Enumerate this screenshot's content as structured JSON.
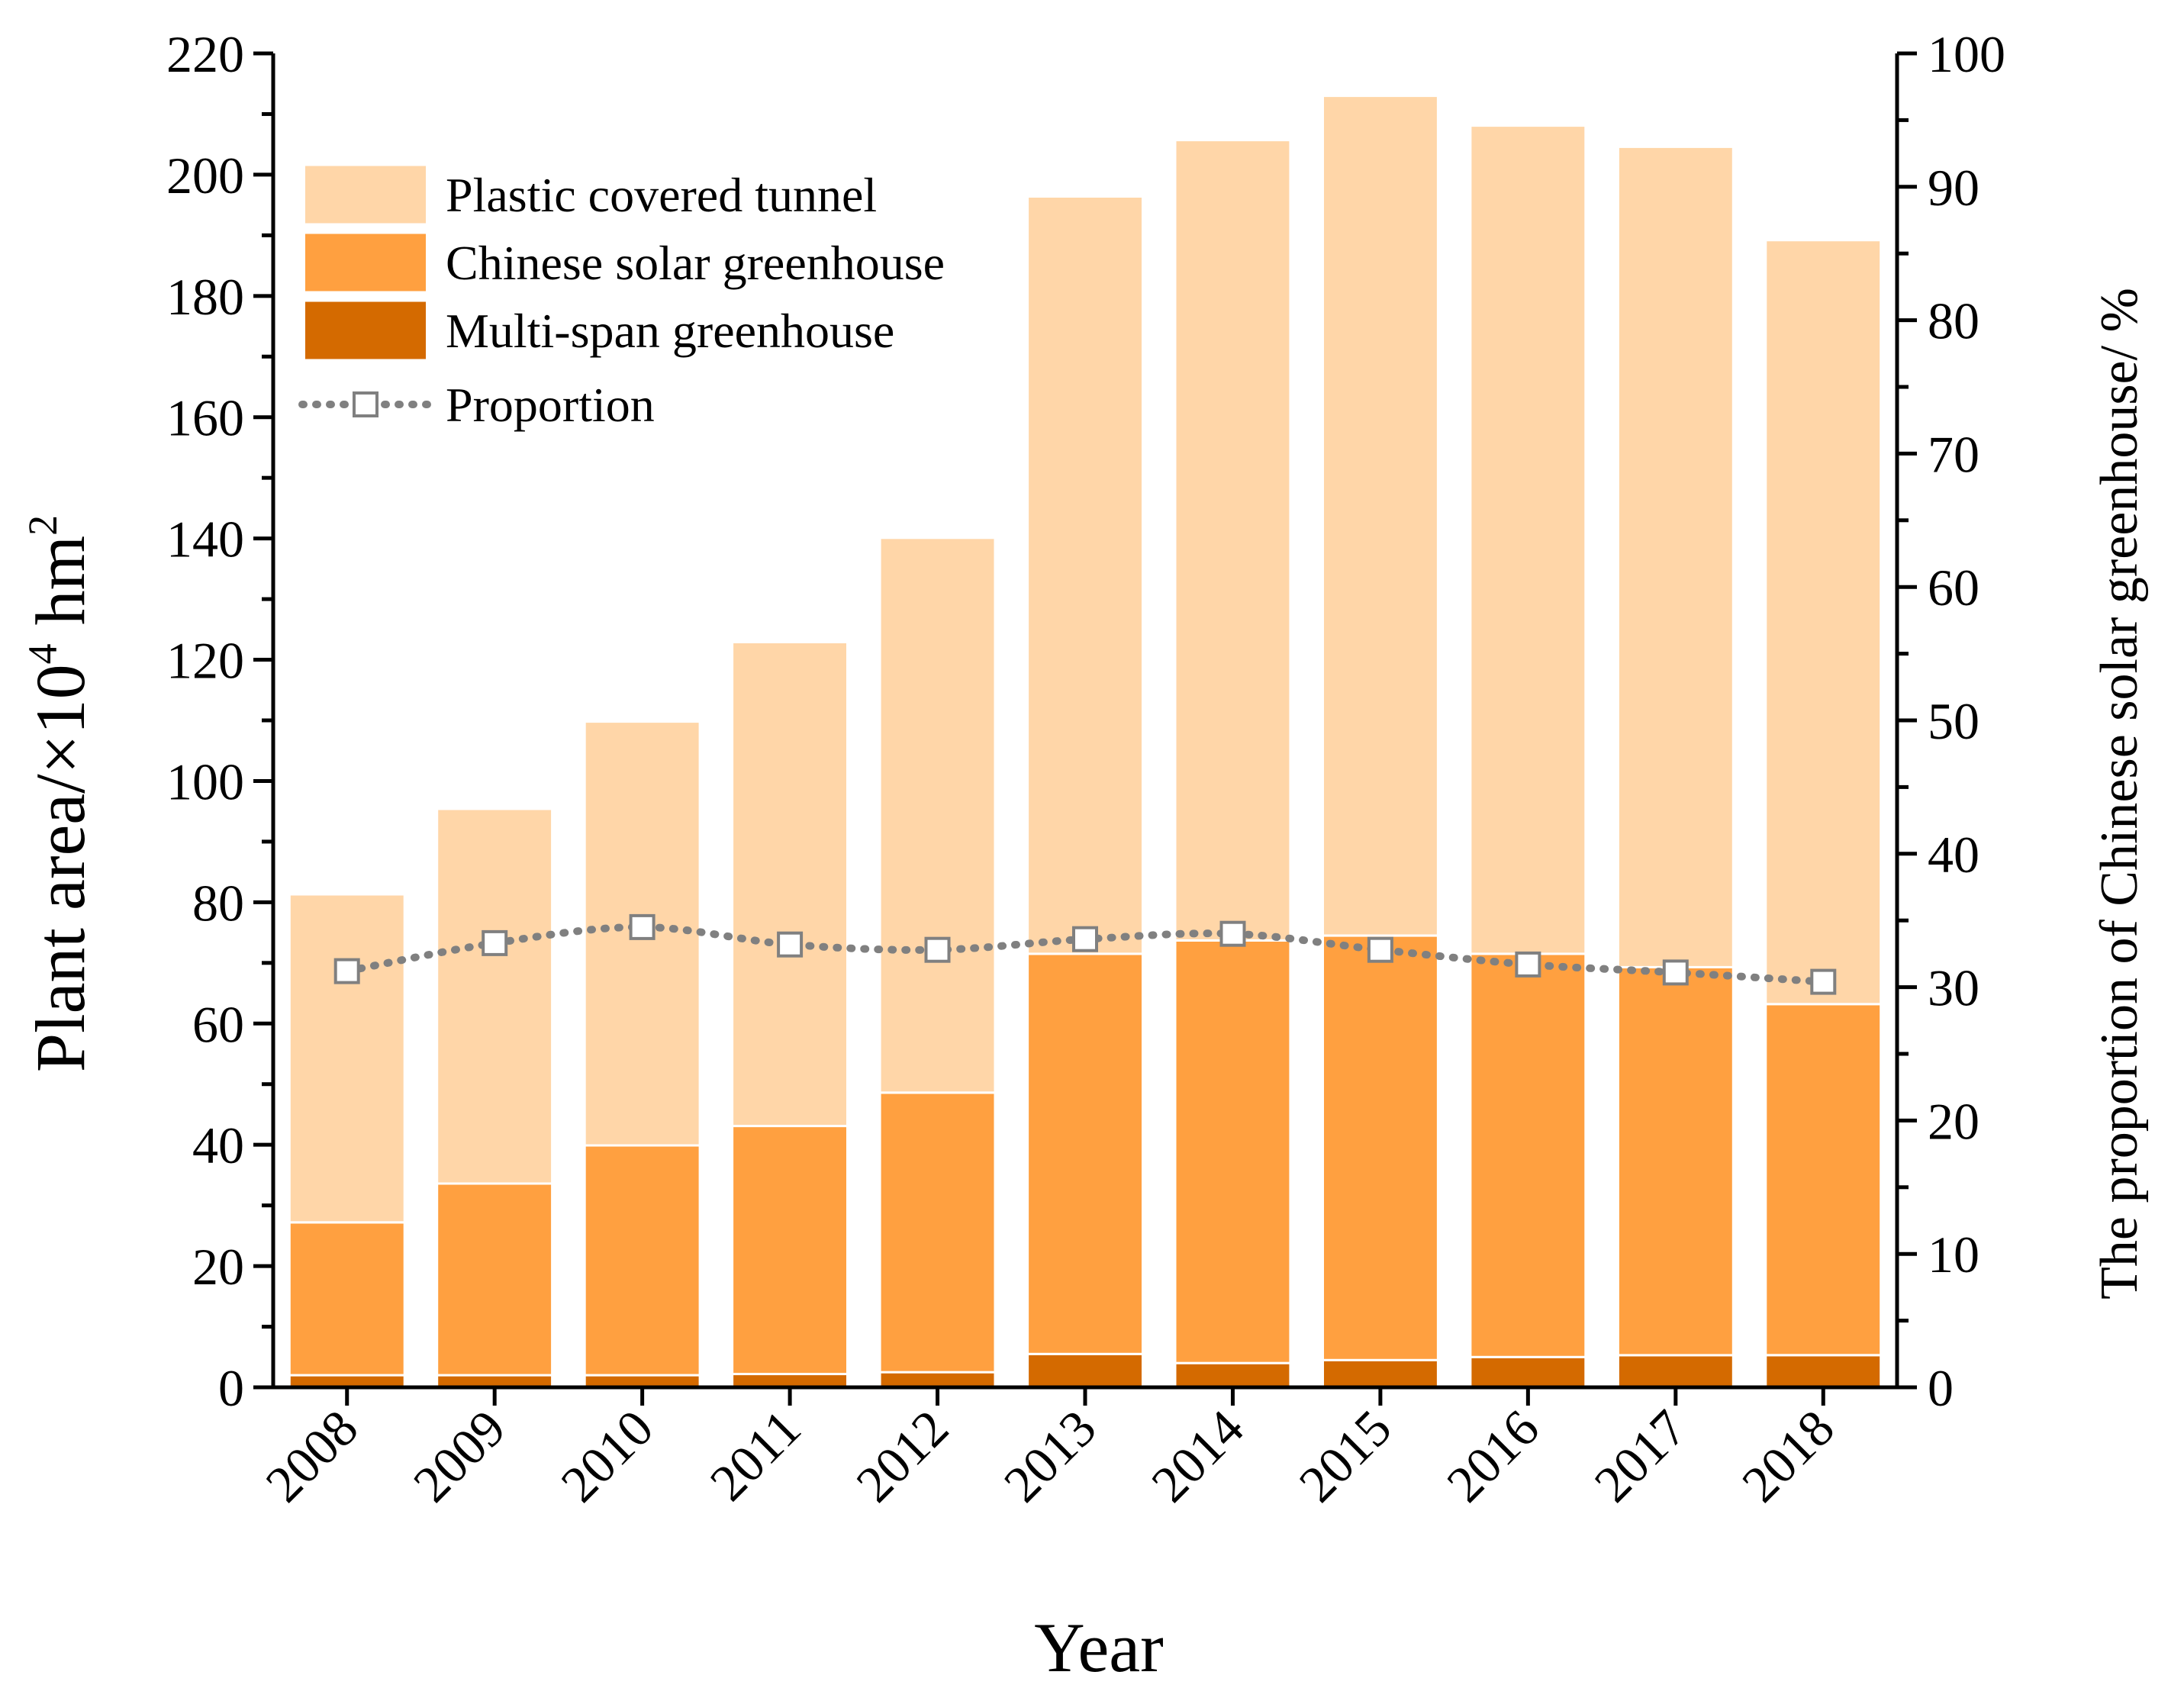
{
  "chart_data": {
    "type": "bar",
    "stacked": true,
    "categories": [
      "2008",
      "2009",
      "2010",
      "2011",
      "2012",
      "2013",
      "2014",
      "2015",
      "2016",
      "2017",
      "2018"
    ],
    "series": [
      {
        "name": "Multi-span greenhouse",
        "values": [
          2,
          2,
          2,
          2.2,
          2.5,
          5.5,
          4,
          4.5,
          5,
          5.3,
          5.3
        ],
        "color": "#d46a00"
      },
      {
        "name": "Chinese solar greenhouse",
        "values": [
          25.2,
          31.6,
          37.9,
          40.9,
          46.1,
          66,
          69.7,
          70,
          66.5,
          64,
          57.9
        ],
        "color": "#ffa040"
      },
      {
        "name": "Plastic covered tunnel",
        "values": [
          54.1,
          61.8,
          69.9,
          79.8,
          91.5,
          124.9,
          132,
          138.5,
          136.6,
          135.3,
          126
        ],
        "color": "#ffd6a8"
      }
    ],
    "line_series": {
      "name": "Proportion",
      "axis": "right",
      "values": [
        31.2,
        33.3,
        34.5,
        33.2,
        32.8,
        33.6,
        34,
        32.8,
        31.7,
        31.1,
        30.4
      ],
      "color": "#808080"
    },
    "title": "",
    "xlabel": "Year",
    "ylabel_main": "Plant area/×10",
    "ylabel_sup": "4",
    "ylabel_unit": "hm",
    "ylabel_unit_sup": "2",
    "y2label": "The proportion of Chinese solar greenhouse/ %",
    "ylim": [
      0,
      220
    ],
    "y2lim": [
      0,
      100
    ],
    "yticks": [
      0,
      20,
      40,
      60,
      80,
      100,
      120,
      140,
      160,
      180,
      200,
      220
    ],
    "y2ticks": [
      0,
      10,
      20,
      30,
      40,
      50,
      60,
      70,
      80,
      90,
      100
    ],
    "legend_position": "top-left",
    "legend": [
      {
        "label": "Plastic covered tunnel",
        "kind": "bar",
        "color": "#ffd6a8"
      },
      {
        "label": "Chinese solar greenhouse",
        "kind": "bar",
        "color": "#ffa040"
      },
      {
        "label": "Multi-span greenhouse",
        "kind": "bar",
        "color": "#d46a00"
      },
      {
        "label": "Proportion",
        "kind": "line",
        "color": "#808080"
      }
    ]
  }
}
